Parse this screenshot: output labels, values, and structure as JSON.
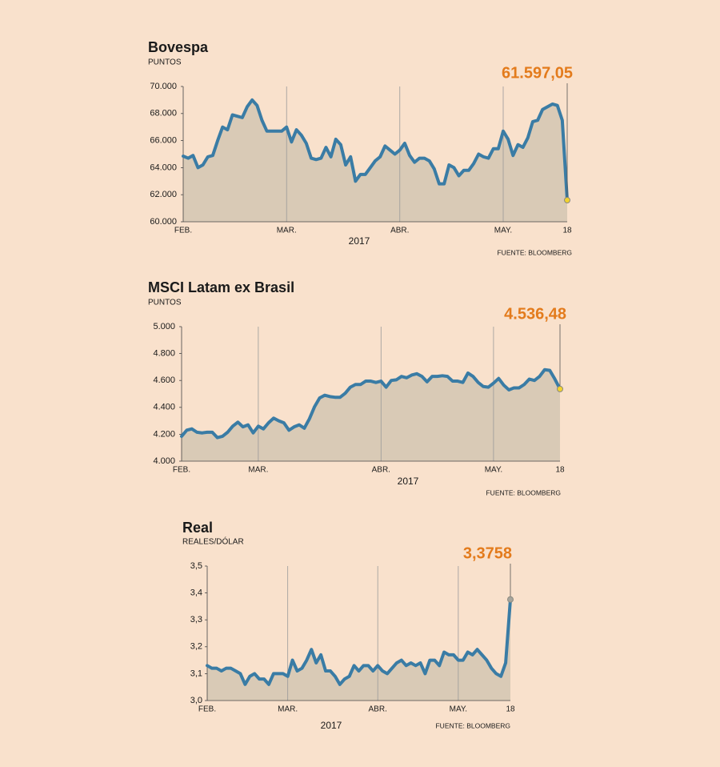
{
  "chart_data": [
    {
      "type": "line",
      "title": "Bovespa",
      "subtitle": "PUNTOS",
      "categories": [
        "FEB.",
        null,
        null,
        null,
        null,
        null,
        null,
        null,
        null,
        null,
        null,
        null,
        null,
        null,
        null,
        null,
        null,
        null,
        null,
        null,
        null,
        "MAR.",
        null,
        null,
        null,
        null,
        null,
        null,
        null,
        null,
        null,
        null,
        null,
        null,
        null,
        null,
        null,
        null,
        null,
        null,
        null,
        null,
        null,
        null,
        "ABR.",
        null,
        null,
        null,
        null,
        null,
        null,
        null,
        null,
        null,
        null,
        null,
        null,
        null,
        null,
        null,
        null,
        null,
        null,
        null,
        null,
        "MAY.",
        null,
        null,
        null,
        null,
        null,
        null,
        null,
        null,
        null,
        null,
        null,
        null,
        "18"
      ],
      "values": [
        64850,
        64700,
        64900,
        64000,
        64200,
        64800,
        64900,
        66000,
        67000,
        66800,
        67900,
        67800,
        67700,
        68500,
        69000,
        68600,
        67500,
        66700,
        66700,
        66700,
        66700,
        67000,
        65900,
        66800,
        66400,
        65800,
        64700,
        64600,
        64700,
        65500,
        64800,
        66100,
        65700,
        64200,
        64800,
        63000,
        63500,
        63500,
        64000,
        64500,
        64800,
        65600,
        65300,
        65000,
        65300,
        65800,
        64900,
        64400,
        64700,
        64700,
        64500,
        63900,
        62800,
        62800,
        64200,
        64000,
        63400,
        63800,
        63800,
        64300,
        65000,
        64800,
        64700,
        65400,
        65400,
        66700,
        66100,
        64900,
        65700,
        65500,
        66200,
        67400,
        67500,
        68300,
        68500,
        68700,
        68600,
        67500,
        61597.05
      ],
      "ylim": [
        60000,
        70000
      ],
      "yticks": [
        {
          "value": 60000,
          "label": "60.000"
        },
        {
          "value": 62000,
          "label": "62.000"
        },
        {
          "value": 64000,
          "label": "64.000"
        },
        {
          "value": 66000,
          "label": "66.000"
        },
        {
          "value": 68000,
          "label": "68.000"
        },
        {
          "value": 70000,
          "label": "70.000"
        }
      ],
      "xlabel": "2017",
      "source": "FUENTE: BLOOMBERG",
      "annotation": "61.597,05",
      "color": "#3a7ca5",
      "area_color": "#d9cab6",
      "annotation_color": "#e37b1c",
      "marker_color": "#f2d22e"
    },
    {
      "type": "line",
      "title": "MSCI Latam ex Brasil",
      "subtitle": "PUNTOS",
      "categories": [
        "FEB.",
        null,
        null,
        null,
        null,
        null,
        null,
        null,
        null,
        null,
        null,
        null,
        null,
        null,
        null,
        "MAR.",
        null,
        null,
        null,
        null,
        null,
        null,
        null,
        null,
        null,
        null,
        null,
        null,
        null,
        null,
        null,
        null,
        null,
        null,
        null,
        null,
        null,
        null,
        null,
        "ABR.",
        null,
        null,
        null,
        null,
        null,
        null,
        null,
        null,
        null,
        null,
        null,
        null,
        null,
        null,
        null,
        null,
        null,
        null,
        null,
        null,
        null,
        "MAY.",
        null,
        null,
        null,
        null,
        null,
        null,
        null,
        null,
        null,
        null,
        null,
        null,
        "18"
      ],
      "values": [
        4185,
        4230,
        4240,
        4215,
        4210,
        4215,
        4215,
        4175,
        4185,
        4215,
        4260,
        4290,
        4255,
        4270,
        4210,
        4260,
        4240,
        4285,
        4320,
        4300,
        4285,
        4230,
        4255,
        4270,
        4245,
        4315,
        4405,
        4470,
        4490,
        4480,
        4475,
        4475,
        4505,
        4550,
        4570,
        4570,
        4595,
        4595,
        4585,
        4595,
        4550,
        4600,
        4605,
        4630,
        4620,
        4640,
        4650,
        4630,
        4590,
        4630,
        4630,
        4635,
        4630,
        4595,
        4595,
        4585,
        4655,
        4630,
        4585,
        4555,
        4550,
        4580,
        4615,
        4565,
        4530,
        4545,
        4545,
        4570,
        4610,
        4600,
        4630,
        4680,
        4675,
        4610,
        4536.48
      ],
      "ylim": [
        4000,
        5000
      ],
      "yticks": [
        {
          "value": 4000,
          "label": "4.000"
        },
        {
          "value": 4200,
          "label": "4.200"
        },
        {
          "value": 4400,
          "label": "4.400"
        },
        {
          "value": 4600,
          "label": "4.600"
        },
        {
          "value": 4800,
          "label": "4.800"
        },
        {
          "value": 5000,
          "label": "5.000"
        }
      ],
      "xlabel": "2017",
      "source": "FUENTE: BLOOMBERG",
      "annotation": "4.536,48",
      "color": "#3a7ca5",
      "area_color": "#d9cab6",
      "annotation_color": "#e37b1c",
      "marker_color": "#f2d22e"
    },
    {
      "type": "line",
      "title": "Real",
      "subtitle": "REALES/DÓLAR",
      "categories": [
        "FEB.",
        null,
        null,
        null,
        null,
        null,
        null,
        null,
        null,
        null,
        null,
        null,
        null,
        null,
        null,
        null,
        null,
        "MAR.",
        null,
        null,
        null,
        null,
        null,
        null,
        null,
        null,
        null,
        null,
        null,
        null,
        null,
        null,
        null,
        null,
        null,
        null,
        "ABR.",
        null,
        null,
        null,
        null,
        null,
        null,
        null,
        null,
        null,
        null,
        null,
        null,
        null,
        null,
        null,
        null,
        "MAY.",
        null,
        null,
        null,
        null,
        null,
        null,
        null,
        null,
        null,
        null,
        "18"
      ],
      "values": [
        3.13,
        3.12,
        3.12,
        3.11,
        3.12,
        3.12,
        3.11,
        3.1,
        3.06,
        3.09,
        3.1,
        3.08,
        3.08,
        3.06,
        3.1,
        3.1,
        3.1,
        3.09,
        3.15,
        3.11,
        3.12,
        3.15,
        3.19,
        3.14,
        3.17,
        3.11,
        3.11,
        3.09,
        3.06,
        3.08,
        3.09,
        3.13,
        3.11,
        3.13,
        3.13,
        3.11,
        3.13,
        3.11,
        3.1,
        3.12,
        3.14,
        3.15,
        3.13,
        3.14,
        3.13,
        3.14,
        3.1,
        3.15,
        3.15,
        3.13,
        3.18,
        3.17,
        3.17,
        3.15,
        3.15,
        3.18,
        3.17,
        3.19,
        3.17,
        3.15,
        3.12,
        3.1,
        3.09,
        3.14,
        3.3758
      ],
      "ylim": [
        3.0,
        3.5
      ],
      "yticks": [
        {
          "value": 3.0,
          "label": "3,0"
        },
        {
          "value": 3.1,
          "label": "3,1"
        },
        {
          "value": 3.2,
          "label": "3,2"
        },
        {
          "value": 3.3,
          "label": "3,3"
        },
        {
          "value": 3.4,
          "label": "3,4"
        },
        {
          "value": 3.5,
          "label": "3,5"
        }
      ],
      "xlabel": "2017",
      "source": "FUENTE: BLOOMBERG",
      "annotation": "3,3758",
      "color": "#3a7ca5",
      "area_color": "#d9cab6",
      "annotation_color": "#e37b1c",
      "marker_color": "#a7a59c"
    }
  ]
}
